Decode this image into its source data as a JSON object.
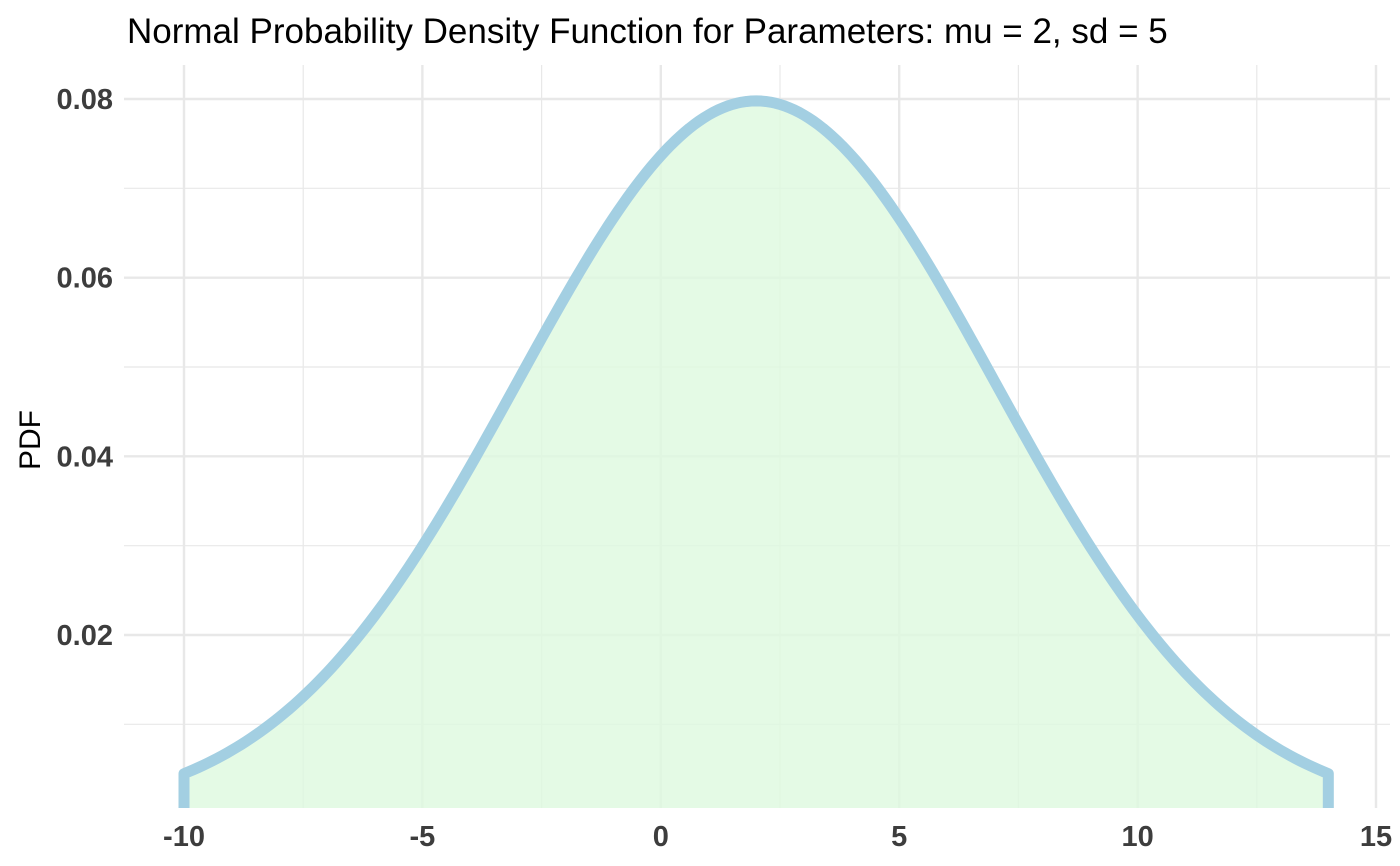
{
  "chart_data": {
    "type": "area",
    "title": "Normal Probability Density Function for Parameters: mu = 2, sd = 5",
    "xlabel": "",
    "ylabel": "PDF",
    "parameters": {
      "mu": 2,
      "sd": 5
    },
    "x_range": [
      -10,
      14
    ],
    "xlim": [
      -10,
      15
    ],
    "ylim": [
      0.0042,
      0.0818
    ],
    "x_ticks": [
      -10,
      -5,
      0,
      5,
      10,
      15
    ],
    "x_tick_labels": [
      "-10",
      "-5",
      "0",
      "5",
      "10",
      "15"
    ],
    "y_ticks": [
      0.02,
      0.04,
      0.06,
      0.08
    ],
    "y_tick_labels": [
      "0.02",
      "0.04",
      "0.06",
      "0.08"
    ],
    "grid": true,
    "legend": "none",
    "colors": {
      "line": "#a3cfe2",
      "fill": "#ddf9de",
      "grid": "#e8e8e8"
    },
    "series": [
      {
        "x": [
          -10,
          -9,
          -8,
          -7,
          -6,
          -5,
          -4,
          -3,
          -2,
          -1,
          0,
          1,
          2,
          3,
          4,
          5,
          6,
          7,
          8,
          9,
          10,
          11,
          12,
          13,
          14
        ],
        "y": [
          0.0045,
          0.006,
          0.0095,
          0.0158,
          0.0224,
          0.0298,
          0.0388,
          0.0484,
          0.0579,
          0.0666,
          0.0737,
          0.0782,
          0.0798,
          0.0782,
          0.0737,
          0.0666,
          0.0579,
          0.0484,
          0.0388,
          0.0298,
          0.0224,
          0.0158,
          0.0108,
          0.0071,
          0.0045
        ]
      }
    ]
  }
}
